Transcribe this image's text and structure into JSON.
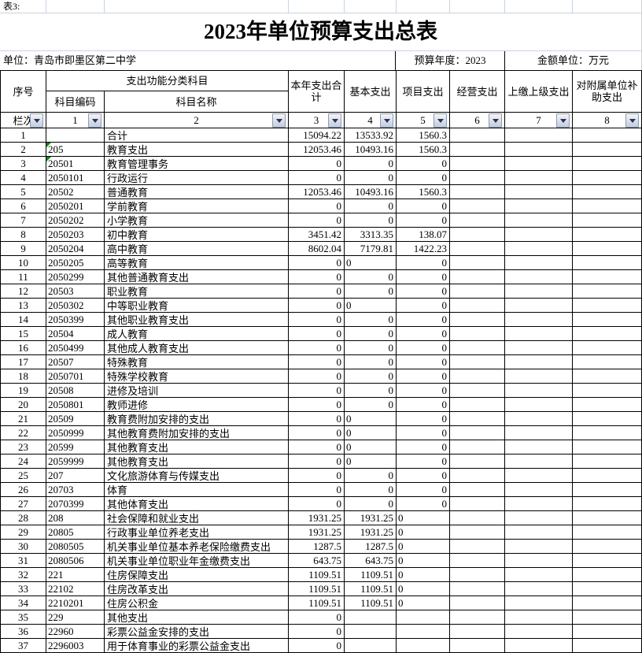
{
  "sheet": {
    "corner_label": "表3:",
    "title": "2023年单位预算支出总表",
    "info": {
      "unit": "单位：青岛市即墨区第二中学",
      "year": "预算年度：2023",
      "money_unit": "金额单位：万元"
    },
    "header": {
      "seq": "序号",
      "func_group": "支出功能分类科目",
      "code": "科目编码",
      "name": "科目名称",
      "total": "本年支出合计",
      "basic": "基本支出",
      "project": "项目支出",
      "operating": "经营支出",
      "upper": "上缴上级支出",
      "subsidy": "对附属单位补助支出"
    },
    "filter_row": {
      "label": "栏次",
      "columns": [
        "1",
        "2",
        "3",
        "4",
        "5",
        "6",
        "7",
        "8"
      ]
    },
    "colors": {
      "grid_line": "#ccd2de",
      "table_border": "#000000",
      "dropdown_arrow": "#21355e",
      "error_marker_green": "#0a8a0a"
    },
    "rows": [
      {
        "n": "1",
        "code": "",
        "name": "合计",
        "total": "15094.22",
        "basic": "13533.92",
        "project": "1560.3"
      },
      {
        "n": "2",
        "code": "205",
        "name": "教育支出",
        "total": "12053.46",
        "basic": "10493.16",
        "project": "1560.3",
        "code_marker": true
      },
      {
        "n": "3",
        "code": "20501",
        "name": "教育管理事务",
        "total": "0",
        "basic": "0",
        "project": "0",
        "code_marker": true
      },
      {
        "n": "4",
        "code": "2050101",
        "name": "行政运行",
        "total": "0",
        "basic": "0",
        "project": "0"
      },
      {
        "n": "5",
        "code": "20502",
        "name": "普通教育",
        "total": "12053.46",
        "basic": "10493.16",
        "project": "1560.3"
      },
      {
        "n": "6",
        "code": "2050201",
        "name": "学前教育",
        "total": "0",
        "basic": "0",
        "project": "0"
      },
      {
        "n": "7",
        "code": "2050202",
        "name": "小学教育",
        "total": "0",
        "basic": "0",
        "project": "0"
      },
      {
        "n": "8",
        "code": "2050203",
        "name": "初中教育",
        "total": "3451.42",
        "basic": "3313.35",
        "project": "138.07"
      },
      {
        "n": "9",
        "code": "2050204",
        "name": "高中教育",
        "total": "8602.04",
        "basic": "7179.81",
        "project": "1422.23"
      },
      {
        "n": "10",
        "code": "2050205",
        "name": "高等教育",
        "total": "0",
        "basic": "0",
        "project": "0",
        "basic_left": true
      },
      {
        "n": "11",
        "code": "2050299",
        "name": "其他普通教育支出",
        "total": "0",
        "basic": "0",
        "project": "0"
      },
      {
        "n": "12",
        "code": "20503",
        "name": "职业教育",
        "total": "0",
        "basic": "0",
        "project": "0"
      },
      {
        "n": "13",
        "code": "2050302",
        "name": "中等职业教育",
        "total": "0",
        "basic": "0",
        "project": "0",
        "basic_left": true
      },
      {
        "n": "14",
        "code": "2050399",
        "name": "其他职业教育支出",
        "total": "0",
        "basic": "0",
        "project": "0"
      },
      {
        "n": "15",
        "code": "20504",
        "name": "成人教育",
        "total": "0",
        "basic": "0",
        "project": "0"
      },
      {
        "n": "16",
        "code": "2050499",
        "name": "其他成人教育支出",
        "total": "0",
        "basic": "0",
        "project": "0"
      },
      {
        "n": "17",
        "code": "20507",
        "name": "特殊教育",
        "total": "0",
        "basic": "0",
        "project": "0"
      },
      {
        "n": "18",
        "code": "2050701",
        "name": "特殊学校教育",
        "total": "0",
        "basic": "0",
        "project": "0"
      },
      {
        "n": "19",
        "code": "20508",
        "name": "进修及培训",
        "total": "0",
        "basic": "0",
        "project": "0"
      },
      {
        "n": "20",
        "code": "2050801",
        "name": "教师进修",
        "total": "0",
        "basic": "0",
        "project": "0"
      },
      {
        "n": "21",
        "code": "20509",
        "name": "教育费附加安排的支出",
        "total": "0",
        "basic": "0",
        "project": "0",
        "basic_left": true
      },
      {
        "n": "22",
        "code": "2050999",
        "name": "其他教育费附加安排的支出",
        "total": "0",
        "basic": "0",
        "project": "0",
        "basic_left": true
      },
      {
        "n": "23",
        "code": "20599",
        "name": "其他教育支出",
        "total": "0",
        "basic": "0",
        "project": "0",
        "basic_left": true
      },
      {
        "n": "24",
        "code": "2059999",
        "name": "其他教育支出",
        "total": "0",
        "basic": "0",
        "project": "0",
        "basic_left": true
      },
      {
        "n": "25",
        "code": "207",
        "name": "文化旅游体育与传媒支出",
        "total": "0",
        "basic": "0",
        "project": "0"
      },
      {
        "n": "26",
        "code": "20703",
        "name": "体育",
        "total": "0",
        "basic": "0",
        "project": "0"
      },
      {
        "n": "27",
        "code": "2070399",
        "name": "其他体育支出",
        "total": "0",
        "basic": "0",
        "project": "0"
      },
      {
        "n": "28",
        "code": "208",
        "name": "社会保障和就业支出",
        "total": "1931.25",
        "basic": "1931.25",
        "project": "0",
        "project_left": true
      },
      {
        "n": "29",
        "code": "20805",
        "name": "行政事业单位养老支出",
        "total": "1931.25",
        "basic": "1931.25",
        "project": "0",
        "project_left": true
      },
      {
        "n": "30",
        "code": "2080505",
        "name": "机关事业单位基本养老保险缴费支出",
        "total": "1287.5",
        "basic": "1287.5",
        "project": "0",
        "project_left": true
      },
      {
        "n": "31",
        "code": "2080506",
        "name": "机关事业单位职业年金缴费支出",
        "total": "643.75",
        "basic": "643.75",
        "project": "0",
        "project_left": true
      },
      {
        "n": "32",
        "code": "221",
        "name": "住房保障支出",
        "total": "1109.51",
        "basic": "1109.51",
        "project": "0",
        "project_left": true
      },
      {
        "n": "33",
        "code": "22102",
        "name": "住房改革支出",
        "total": "1109.51",
        "basic": "1109.51",
        "project": "0",
        "project_left": true
      },
      {
        "n": "34",
        "code": "2210201",
        "name": "住房公积金",
        "total": "1109.51",
        "basic": "1109.51",
        "project": "0",
        "project_left": true
      },
      {
        "n": "35",
        "code": "229",
        "name": "其他支出",
        "total": "0",
        "basic": "",
        "project": ""
      },
      {
        "n": "36",
        "code": "22960",
        "name": "彩票公益金安排的支出",
        "total": "0",
        "basic": "",
        "project": ""
      },
      {
        "n": "37",
        "code": "2296003",
        "name": "用于体育事业的彩票公益金支出",
        "total": "0",
        "basic": "",
        "project": ""
      }
    ]
  }
}
